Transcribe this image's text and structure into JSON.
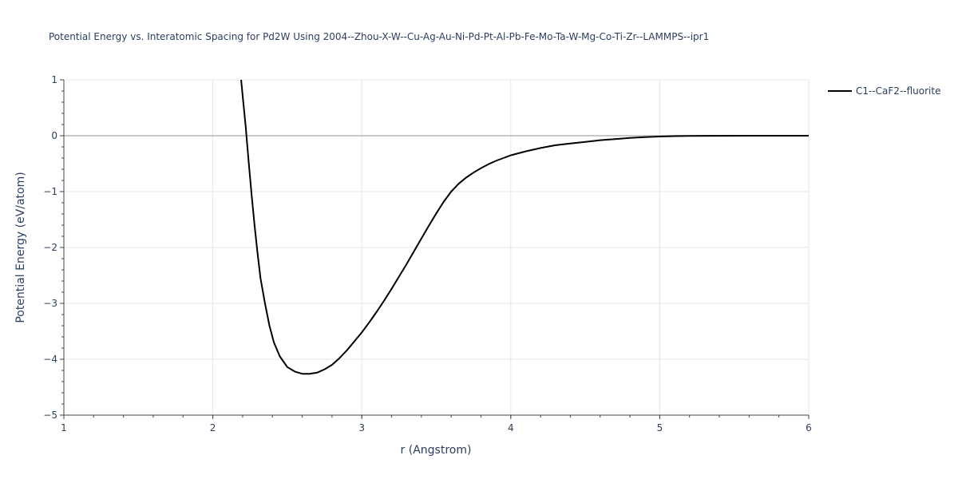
{
  "chart_data": {
    "type": "line",
    "title": "Potential Energy vs. Interatomic Spacing for Pd2W Using 2004--Zhou-X-W--Cu-Ag-Au-Ni-Pd-Pt-Al-Pb-Fe-Mo-Ta-W-Mg-Co-Ti-Zr--LAMMPS--ipr1",
    "xlabel": "r (Angstrom)",
    "ylabel": "Potential Energy (eV/atom)",
    "xlim": [
      1,
      6
    ],
    "ylim": [
      -5,
      1
    ],
    "x_ticks": [
      "1",
      "2",
      "3",
      "4",
      "5",
      "6"
    ],
    "y_ticks": [
      "1",
      "0",
      "−1",
      "−2",
      "−3",
      "−4",
      "−5"
    ],
    "grid": true,
    "legend_position": "top-right",
    "series": [
      {
        "name": "C1--CaF2--fluorite",
        "color": "#000000",
        "x": [
          2.19,
          2.2,
          2.22,
          2.24,
          2.26,
          2.28,
          2.3,
          2.32,
          2.35,
          2.38,
          2.41,
          2.45,
          2.5,
          2.55,
          2.6,
          2.65,
          2.7,
          2.75,
          2.8,
          2.85,
          2.9,
          2.95,
          3.0,
          3.05,
          3.1,
          3.15,
          3.2,
          3.25,
          3.3,
          3.35,
          3.4,
          3.45,
          3.5,
          3.55,
          3.6,
          3.65,
          3.7,
          3.75,
          3.8,
          3.85,
          3.9,
          3.95,
          4.0,
          4.1,
          4.2,
          4.3,
          4.4,
          4.5,
          4.6,
          4.7,
          4.8,
          4.9,
          5.0,
          5.1,
          5.2,
          5.4,
          5.6,
          5.8,
          6.0
        ],
        "y": [
          1.0,
          0.72,
          0.18,
          -0.45,
          -1.05,
          -1.6,
          -2.1,
          -2.55,
          -3.0,
          -3.4,
          -3.7,
          -3.95,
          -4.14,
          -4.22,
          -4.26,
          -4.26,
          -4.24,
          -4.18,
          -4.1,
          -3.98,
          -3.84,
          -3.68,
          -3.52,
          -3.34,
          -3.15,
          -2.95,
          -2.74,
          -2.52,
          -2.3,
          -2.07,
          -1.84,
          -1.61,
          -1.39,
          -1.18,
          -1.0,
          -0.86,
          -0.75,
          -0.66,
          -0.58,
          -0.51,
          -0.45,
          -0.4,
          -0.35,
          -0.28,
          -0.22,
          -0.17,
          -0.14,
          -0.11,
          -0.08,
          -0.06,
          -0.04,
          -0.025,
          -0.015,
          -0.008,
          -0.004,
          -0.001,
          0.0,
          0.0,
          0.0
        ]
      }
    ]
  }
}
